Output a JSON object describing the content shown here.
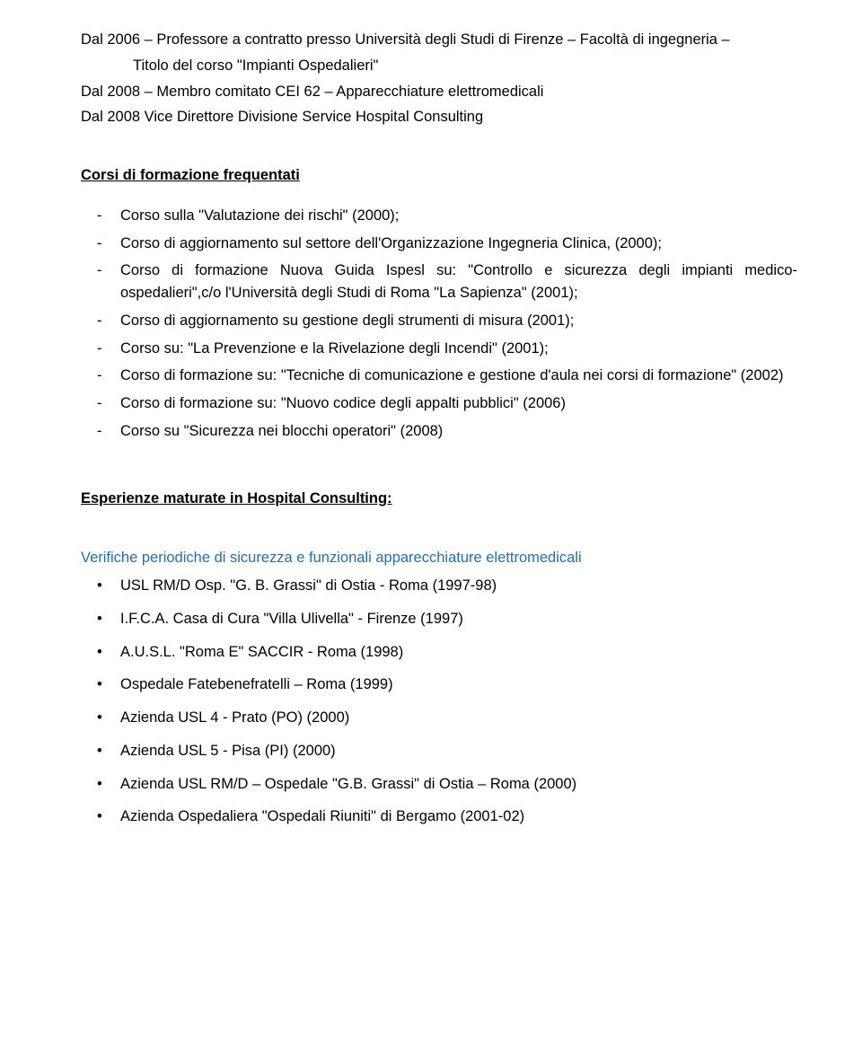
{
  "intro": {
    "line1a": "Dal 2006 – Professore a contratto presso Università degli Studi di Firenze – Facoltà di ingegneria –",
    "line1b": "Titolo del corso \"Impianti Ospedalieri\"",
    "line2": "Dal 2008 – Membro comitato CEI 62 – Apparecchiature elettromedicali",
    "line3": "Dal 2008 Vice Direttore Divisione Service Hospital Consulting"
  },
  "section1": {
    "heading": "Corsi di formazione frequentati",
    "items": [
      "Corso sulla \"Valutazione dei rischi\" (2000);",
      "Corso di aggiornamento sul settore dell'Organizzazione Ingegneria Clinica, (2000);",
      "Corso di formazione Nuova Guida Ispesl su: \"Controllo e sicurezza degli impianti medico-ospedalieri\",c/o l'Università degli Studi di Roma \"La Sapienza\" (2001);",
      "Corso di aggiornamento su gestione degli strumenti di misura (2001);",
      "Corso su: \"La Prevenzione e la Rivelazione degli Incendi\" (2001);",
      "Corso di formazione su: \"Tecniche di comunicazione e gestione d'aula nei corsi di formazione\" (2002)",
      "Corso di formazione su: \"Nuovo codice degli appalti pubblici\" (2006)",
      "Corso su \"Sicurezza nei blocchi operatori\" (2008)"
    ]
  },
  "section2": {
    "heading": "Esperienze maturate in Hospital Consulting:",
    "sub_heading": "Verifiche periodiche di sicurezza e funzionali apparecchiature elettromedicali",
    "items": [
      "USL RM/D Osp. \"G. B. Grassi\" di Ostia - Roma (1997-98)",
      "I.F.C.A. Casa di Cura \"Villa Ulivella\" - Firenze (1997)",
      "A.U.S.L. \"Roma E\" SACCIR - Roma (1998)",
      "Ospedale Fatebenefratelli – Roma (1999)",
      "Azienda USL 4 - Prato (PO) (2000)",
      "Azienda USL 5 - Pisa (PI) (2000)",
      "Azienda USL RM/D – Ospedale \"G.B. Grassi\" di Ostia – Roma (2000)",
      "Azienda Ospedaliera \"Ospedali Riuniti\" di Bergamo (2001-02)"
    ]
  }
}
